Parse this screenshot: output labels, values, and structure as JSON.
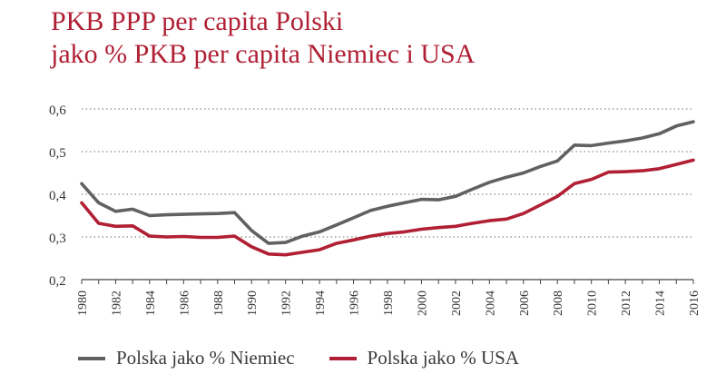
{
  "chart_data": {
    "type": "line",
    "title_lines": [
      "PKB PPP per capita Polski",
      "jako % PKB per capita Niemiec i USA"
    ],
    "xlabel": "",
    "ylabel": "",
    "x": [
      1980,
      1981,
      1982,
      1983,
      1984,
      1985,
      1986,
      1987,
      1988,
      1989,
      1990,
      1991,
      1992,
      1993,
      1994,
      1995,
      1996,
      1997,
      1998,
      1999,
      2000,
      2001,
      2002,
      2003,
      2004,
      2005,
      2006,
      2007,
      2008,
      2009,
      2010,
      2011,
      2012,
      2013,
      2014,
      2015,
      2016
    ],
    "x_tick_labels": [
      "1980",
      "1982",
      "1984",
      "1986",
      "1988",
      "1990",
      "1992",
      "1994",
      "1996",
      "1998",
      "2000",
      "2002",
      "2004",
      "2006",
      "2008",
      "2010",
      "2012",
      "2014",
      "2016"
    ],
    "y_tick_labels": [
      "0,6",
      "0,5",
      "0,4",
      "0,3",
      "0,2"
    ],
    "y_ticks": [
      0.6,
      0.5,
      0.4,
      0.3,
      0.2
    ],
    "xlim": [
      1980,
      2016
    ],
    "ylim": [
      0.2,
      0.6
    ],
    "grid": "horizontal-dotted",
    "legend_position": "bottom",
    "series": [
      {
        "name": "Polska jako % Niemiec",
        "color": "#5f6163",
        "values": [
          0.425,
          0.38,
          0.36,
          0.365,
          0.35,
          0.352,
          0.353,
          0.354,
          0.355,
          0.357,
          0.315,
          0.285,
          0.287,
          0.302,
          0.312,
          0.328,
          0.345,
          0.362,
          0.372,
          0.38,
          0.388,
          0.387,
          0.395,
          0.412,
          0.428,
          0.44,
          0.45,
          0.465,
          0.478,
          0.515,
          0.514,
          0.52,
          0.525,
          0.532,
          0.542,
          0.56,
          0.57
        ]
      },
      {
        "name": "Polska jako % USA",
        "color": "#b01f33",
        "values": [
          0.38,
          0.332,
          0.325,
          0.326,
          0.302,
          0.3,
          0.301,
          0.299,
          0.299,
          0.302,
          0.277,
          0.26,
          0.258,
          0.264,
          0.27,
          0.285,
          0.293,
          0.302,
          0.308,
          0.312,
          0.318,
          0.322,
          0.325,
          0.332,
          0.338,
          0.342,
          0.355,
          0.375,
          0.395,
          0.425,
          0.435,
          0.452,
          0.453,
          0.455,
          0.46,
          0.47,
          0.48
        ]
      }
    ]
  }
}
